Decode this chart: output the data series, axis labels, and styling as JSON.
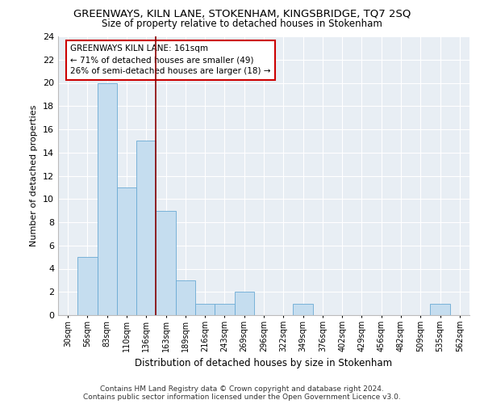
{
  "title": "GREENWAYS, KILN LANE, STOKENHAM, KINGSBRIDGE, TQ7 2SQ",
  "subtitle": "Size of property relative to detached houses in Stokenham",
  "xlabel": "Distribution of detached houses by size in Stokenham",
  "ylabel": "Number of detached properties",
  "categories": [
    "30sqm",
    "56sqm",
    "83sqm",
    "110sqm",
    "136sqm",
    "163sqm",
    "189sqm",
    "216sqm",
    "243sqm",
    "269sqm",
    "296sqm",
    "322sqm",
    "349sqm",
    "376sqm",
    "402sqm",
    "429sqm",
    "456sqm",
    "482sqm",
    "509sqm",
    "535sqm",
    "562sqm"
  ],
  "values": [
    0,
    5,
    20,
    11,
    15,
    9,
    3,
    1,
    1,
    2,
    0,
    0,
    1,
    0,
    0,
    0,
    0,
    0,
    0,
    1,
    0
  ],
  "bar_color": "#c5ddef",
  "bar_edge_color": "#6aaad4",
  "vline_color": "#8b0000",
  "annotation_text": "GREENWAYS KILN LANE: 161sqm\n← 71% of detached houses are smaller (49)\n26% of semi-detached houses are larger (18) →",
  "annotation_box_color": "white",
  "annotation_box_edge": "#cc0000",
  "ylim": [
    0,
    24
  ],
  "yticks": [
    0,
    2,
    4,
    6,
    8,
    10,
    12,
    14,
    16,
    18,
    20,
    22,
    24
  ],
  "bg_color": "#e8eef4",
  "footer": "Contains HM Land Registry data © Crown copyright and database right 2024.\nContains public sector information licensed under the Open Government Licence v3.0.",
  "title_fontsize": 9.5,
  "subtitle_fontsize": 8.5,
  "footer_fontsize": 6.5
}
